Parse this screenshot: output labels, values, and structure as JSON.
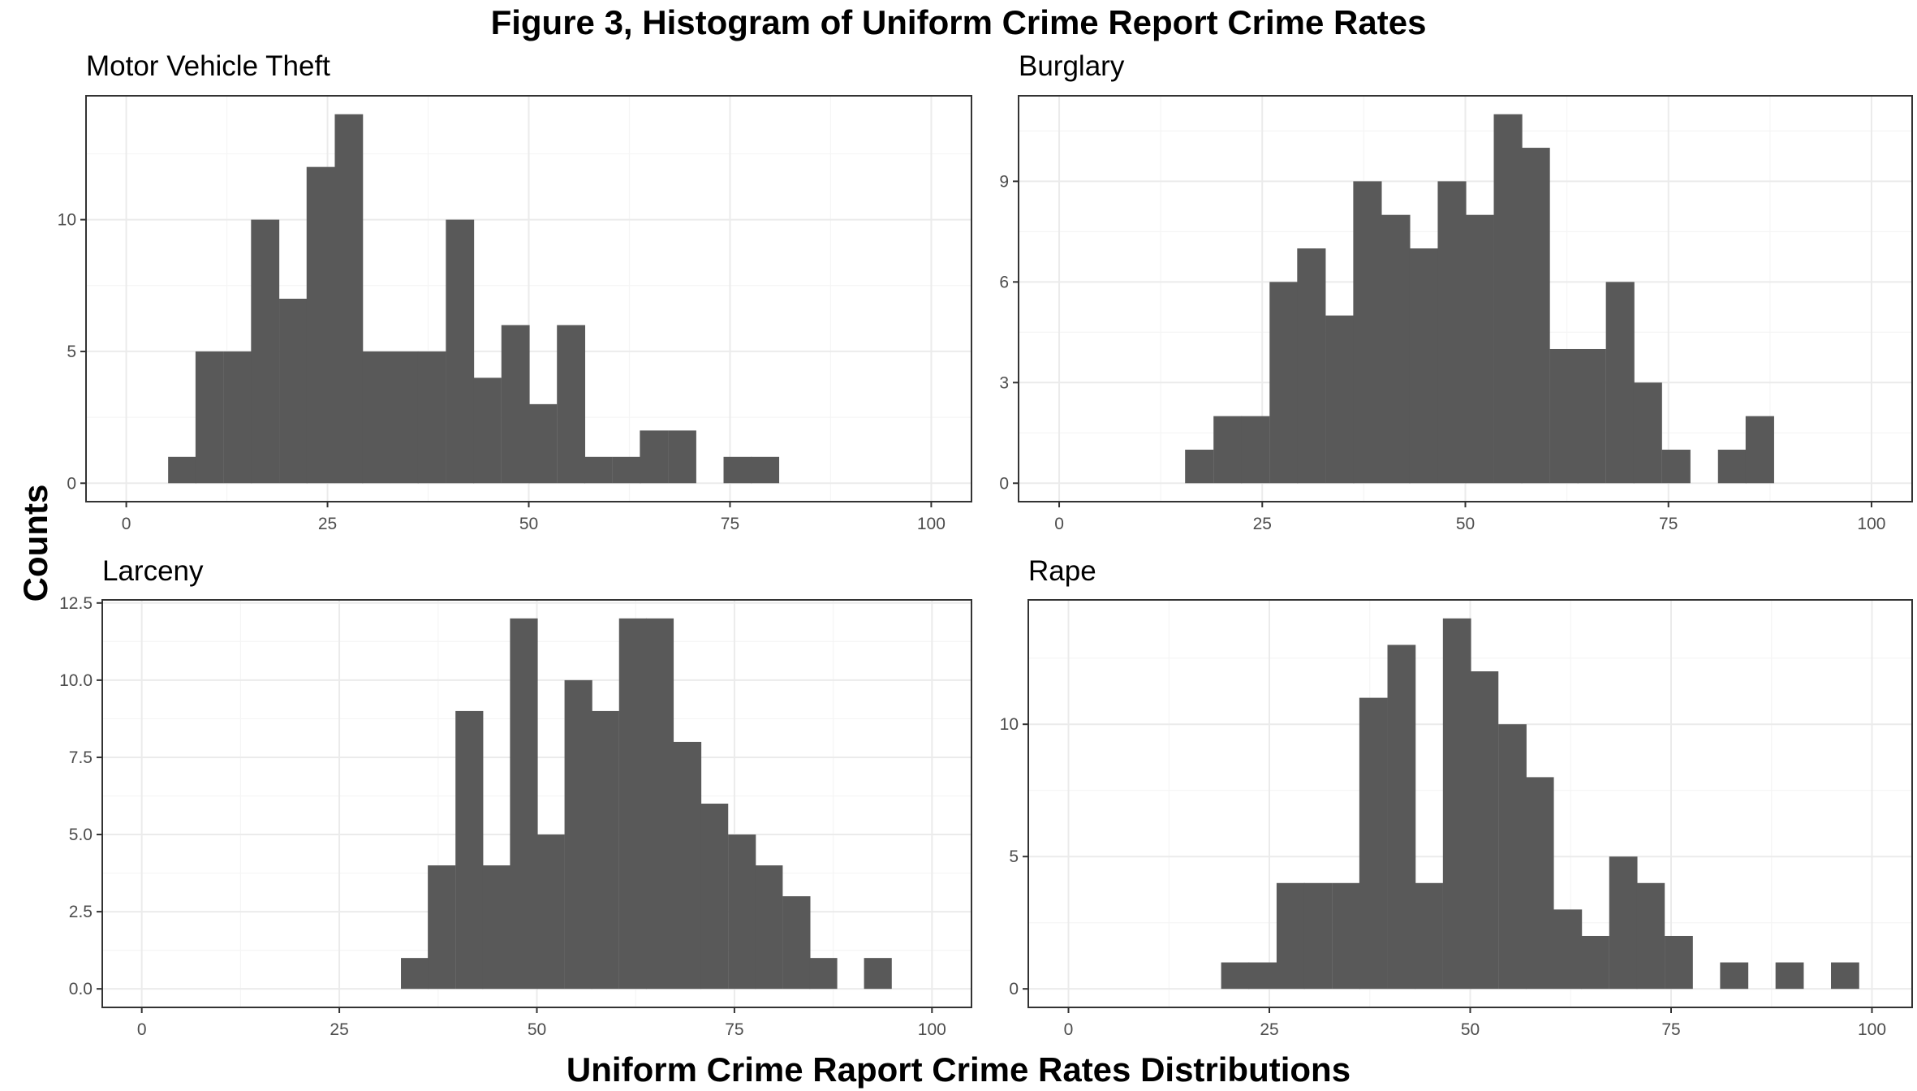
{
  "figure_title": "Figure 3, Histogram of Uniform Crime Report Crime Rates",
  "y_axis_title": "Counts",
  "x_axis_title": "Uniform Crime Raport Crime Rates Distributions",
  "colors": {
    "bar": "#595959",
    "panel_border": "#333333",
    "grid_major": "#ebebeb",
    "grid_minor": "#f5f5f5",
    "tick_text": "#4d4d4d"
  },
  "chart_data": [
    {
      "type": "bar",
      "title": "Motor Vehicle Theft",
      "xlabel": "",
      "ylabel": "",
      "xlim": [
        -5,
        105
      ],
      "ylim": [
        -0.7,
        14.7
      ],
      "xticks": [
        0,
        25,
        50,
        75,
        100
      ],
      "yticks": [
        0,
        5,
        10
      ],
      "bin_width": 3.45,
      "bins": [
        [
          5.2,
          1
        ],
        [
          8.6,
          5
        ],
        [
          12.1,
          5
        ],
        [
          15.5,
          10
        ],
        [
          19.0,
          7
        ],
        [
          22.4,
          12
        ],
        [
          25.9,
          14
        ],
        [
          29.3,
          5
        ],
        [
          32.8,
          5
        ],
        [
          36.2,
          5
        ],
        [
          39.7,
          10
        ],
        [
          43.1,
          4
        ],
        [
          46.6,
          6
        ],
        [
          50.0,
          3
        ],
        [
          53.5,
          6
        ],
        [
          56.9,
          1
        ],
        [
          60.4,
          1
        ],
        [
          63.8,
          2
        ],
        [
          67.3,
          2
        ],
        [
          70.7,
          0
        ],
        [
          74.2,
          1
        ],
        [
          77.6,
          1
        ]
      ]
    },
    {
      "type": "bar",
      "title": "Burglary",
      "xlabel": "",
      "ylabel": "",
      "xlim": [
        -5,
        105
      ],
      "ylim": [
        -0.55,
        11.55
      ],
      "xticks": [
        0,
        25,
        50,
        75,
        100
      ],
      "yticks": [
        0,
        3,
        6,
        9
      ],
      "bin_width": 3.45,
      "bins": [
        [
          15.5,
          1
        ],
        [
          19.0,
          2
        ],
        [
          22.4,
          2
        ],
        [
          25.9,
          6
        ],
        [
          29.3,
          7
        ],
        [
          32.8,
          5
        ],
        [
          36.2,
          9
        ],
        [
          39.7,
          8
        ],
        [
          43.1,
          7
        ],
        [
          46.6,
          9
        ],
        [
          50.0,
          8
        ],
        [
          53.5,
          11
        ],
        [
          56.9,
          10
        ],
        [
          60.4,
          4
        ],
        [
          63.8,
          4
        ],
        [
          67.3,
          6
        ],
        [
          70.7,
          3
        ],
        [
          74.2,
          1
        ],
        [
          77.6,
          0
        ],
        [
          81.1,
          1
        ],
        [
          84.5,
          2
        ]
      ]
    },
    {
      "type": "bar",
      "title": "Larceny",
      "xlabel": "",
      "ylabel": "",
      "xlim": [
        -5,
        105
      ],
      "ylim": [
        -0.6,
        12.6
      ],
      "xticks": [
        0,
        25,
        50,
        75,
        100
      ],
      "yticks": [
        0.0,
        2.5,
        5.0,
        7.5,
        10.0,
        12.5
      ],
      "ytick_labels": [
        "0.0",
        "2.5",
        "5.0",
        "7.5",
        "10.0",
        "12.5"
      ],
      "bin_width": 3.45,
      "bins": [
        [
          32.8,
          1
        ],
        [
          36.2,
          4
        ],
        [
          39.7,
          9
        ],
        [
          43.1,
          4
        ],
        [
          46.6,
          12
        ],
        [
          50.0,
          5
        ],
        [
          53.5,
          10
        ],
        [
          56.9,
          9
        ],
        [
          60.4,
          12
        ],
        [
          63.8,
          12
        ],
        [
          67.3,
          8
        ],
        [
          70.7,
          6
        ],
        [
          74.2,
          5
        ],
        [
          77.6,
          4
        ],
        [
          81.1,
          3
        ],
        [
          84.5,
          1
        ],
        [
          88.0,
          0
        ],
        [
          91.4,
          1
        ]
      ]
    },
    {
      "type": "bar",
      "title": "Rape",
      "xlabel": "",
      "ylabel": "",
      "xlim": [
        -5,
        105
      ],
      "ylim": [
        -0.7,
        14.7
      ],
      "xticks": [
        0,
        25,
        50,
        75,
        100
      ],
      "yticks": [
        0,
        5,
        10
      ],
      "bin_width": 3.45,
      "bins": [
        [
          19.0,
          1
        ],
        [
          22.4,
          1
        ],
        [
          25.9,
          4
        ],
        [
          29.3,
          4
        ],
        [
          32.8,
          4
        ],
        [
          36.2,
          11
        ],
        [
          39.7,
          13
        ],
        [
          43.1,
          4
        ],
        [
          46.6,
          14
        ],
        [
          50.0,
          12
        ],
        [
          53.5,
          10
        ],
        [
          56.9,
          8
        ],
        [
          60.4,
          3
        ],
        [
          63.8,
          2
        ],
        [
          67.3,
          5
        ],
        [
          70.7,
          4
        ],
        [
          74.2,
          2
        ],
        [
          77.6,
          0
        ],
        [
          81.1,
          1
        ],
        [
          84.5,
          0
        ],
        [
          88.0,
          1
        ],
        [
          91.4,
          0
        ],
        [
          94.9,
          1
        ]
      ]
    }
  ]
}
